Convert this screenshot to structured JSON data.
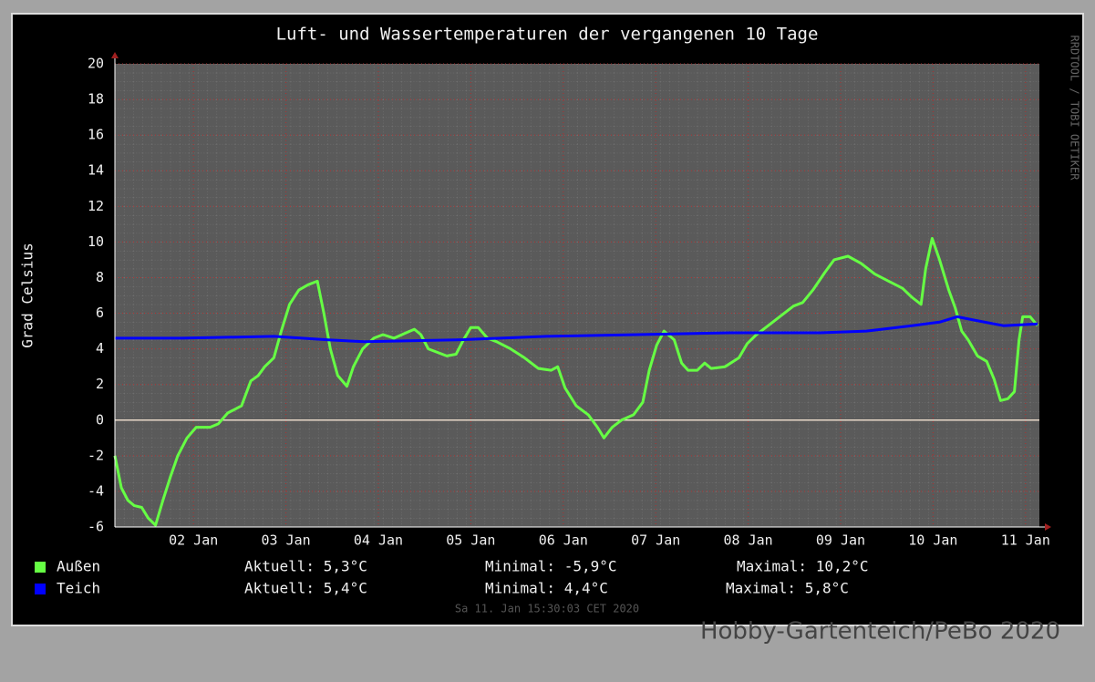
{
  "chart_data": {
    "type": "line",
    "title": "Luft- und Wassertemperaturen der vergangenen 10 Tage",
    "y_label": "Grad Celsius",
    "side_label": "RRDTOOL / TOBI OETIKER",
    "footer": "Sa 11. Jan 15:30:03 CET 2020",
    "watermark": "Hobby-Gartenteich/PeBo 2020",
    "xlim": [
      1.65,
      11.65
    ],
    "xticks": [
      {
        "value": 2.5,
        "label": "02 Jan"
      },
      {
        "value": 3.5,
        "label": "03 Jan"
      },
      {
        "value": 4.5,
        "label": "04 Jan"
      },
      {
        "value": 5.5,
        "label": "05 Jan"
      },
      {
        "value": 6.5,
        "label": "06 Jan"
      },
      {
        "value": 7.5,
        "label": "07 Jan"
      },
      {
        "value": 8.5,
        "label": "08 Jan"
      },
      {
        "value": 9.5,
        "label": "09 Jan"
      },
      {
        "value": 10.5,
        "label": "10 Jan"
      },
      {
        "value": 11.5,
        "label": "11 Jan"
      }
    ],
    "ylim": [
      -6,
      20
    ],
    "yticks": [
      -6,
      -4,
      -2,
      0,
      2,
      4,
      6,
      8,
      10,
      12,
      14,
      16,
      18,
      20
    ],
    "hrule": 0,
    "grid": true,
    "series": [
      {
        "name": "Außen",
        "color": "#66ff44",
        "stats": [
          "Aktuell: 5,3°C",
          "Minimal: -5,9°C",
          "Maximal: 10,2°C"
        ],
        "x": [
          1.65,
          1.72,
          1.79,
          1.86,
          1.94,
          2.01,
          2.09,
          2.17,
          2.25,
          2.33,
          2.43,
          2.53,
          2.68,
          2.77,
          2.87,
          3.02,
          3.12,
          3.2,
          3.27,
          3.37,
          3.45,
          3.54,
          3.64,
          3.74,
          3.84,
          3.91,
          3.98,
          4.06,
          4.16,
          4.23,
          4.33,
          4.45,
          4.55,
          4.67,
          4.8,
          4.89,
          4.96,
          5.04,
          5.14,
          5.24,
          5.34,
          5.42,
          5.5,
          5.58,
          5.68,
          5.78,
          5.93,
          6.08,
          6.23,
          6.37,
          6.44,
          6.52,
          6.64,
          6.77,
          6.87,
          6.94,
          7.03,
          7.13,
          7.26,
          7.36,
          7.43,
          7.51,
          7.59,
          7.7,
          7.78,
          7.85,
          7.95,
          8.03,
          8.1,
          8.25,
          8.4,
          8.49,
          8.59,
          8.69,
          8.84,
          8.99,
          9.09,
          9.2,
          9.33,
          9.43,
          9.58,
          9.72,
          9.87,
          10.02,
          10.17,
          10.27,
          10.37,
          10.42,
          10.49,
          10.57,
          10.67,
          10.74,
          10.81,
          10.88,
          10.98,
          11.08,
          11.16,
          11.23,
          11.31,
          11.38,
          11.43,
          11.47,
          11.55,
          11.63
        ],
        "values": [
          -2,
          -3.8,
          -4.5,
          -4.8,
          -4.9,
          -5.5,
          -5.9,
          -4.5,
          -3.2,
          -2,
          -1,
          -0.4,
          -0.4,
          -0.2,
          0.4,
          0.8,
          2.2,
          2.5,
          3,
          3.5,
          5,
          6.5,
          7.3,
          7.6,
          7.8,
          6,
          4,
          2.5,
          1.9,
          3,
          4,
          4.6,
          4.8,
          4.6,
          4.9,
          5.1,
          4.8,
          4,
          3.8,
          3.6,
          3.7,
          4.5,
          5.2,
          5.2,
          4.6,
          4.4,
          4,
          3.5,
          2.9,
          2.8,
          3,
          1.8,
          0.8,
          0.3,
          -0.4,
          -1,
          -0.4,
          0,
          0.3,
          1,
          2.8,
          4.2,
          5,
          4.5,
          3.2,
          2.8,
          2.8,
          3.2,
          2.9,
          3,
          3.5,
          4.3,
          4.8,
          5.2,
          5.8,
          6.4,
          6.6,
          7.3,
          8.3,
          9,
          9.2,
          8.8,
          8.2,
          7.8,
          7.4,
          6.9,
          6.5,
          8.5,
          10.2,
          9,
          7.3,
          6.3,
          5,
          4.5,
          3.6,
          3.3,
          2.3,
          1.1,
          1.2,
          1.6,
          4.5,
          5.8,
          5.8,
          5.3
        ]
      },
      {
        "name": "Teich",
        "color": "#0000ff",
        "stats": [
          "Aktuell: 5,4°C",
          "Minimal: 4,4°C",
          "Maximal: 5,8°C"
        ],
        "x": [
          1.65,
          2.38,
          3.37,
          3.96,
          4.35,
          5.34,
          6.32,
          7.31,
          8.3,
          9.28,
          9.78,
          10.27,
          10.57,
          10.76,
          10.96,
          11.26,
          11.63
        ],
        "values": [
          4.6,
          4.6,
          4.7,
          4.5,
          4.4,
          4.5,
          4.7,
          4.8,
          4.9,
          4.9,
          5.0,
          5.3,
          5.5,
          5.8,
          5.6,
          5.3,
          5.4
        ]
      }
    ]
  }
}
